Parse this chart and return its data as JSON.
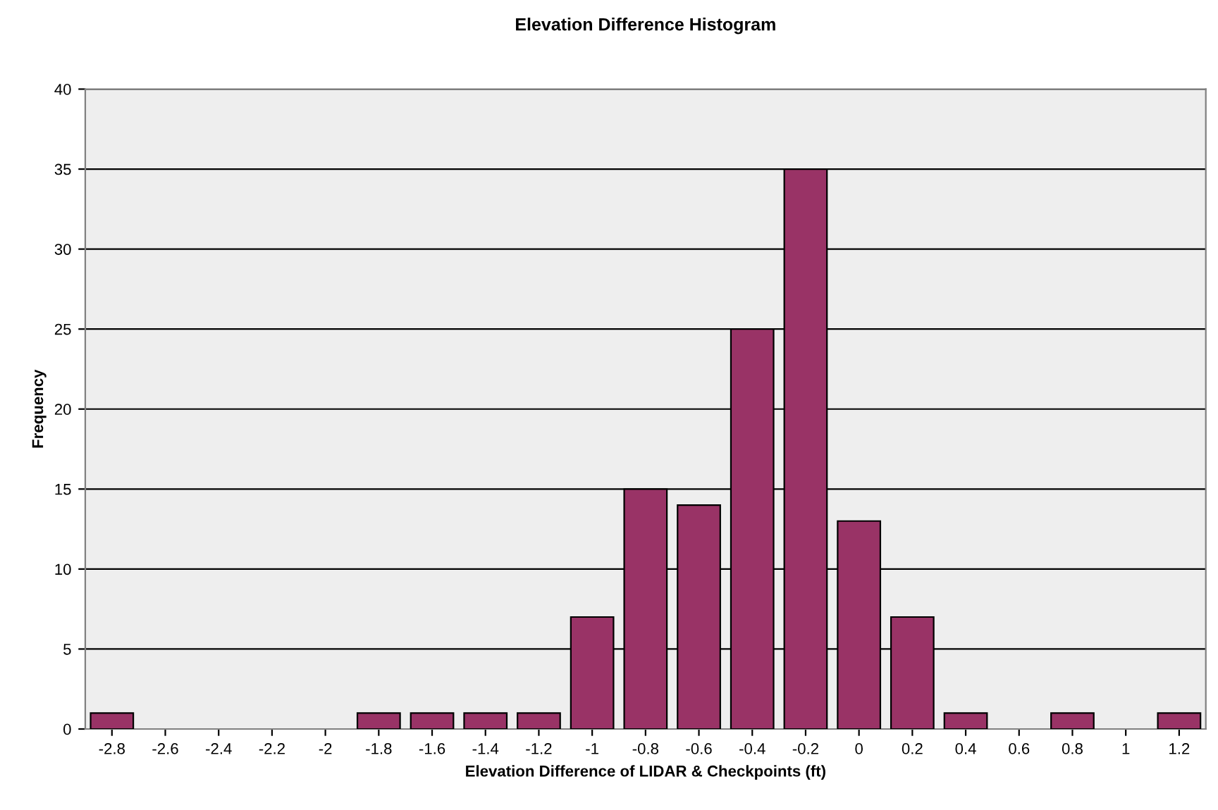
{
  "chart_data": {
    "type": "bar",
    "title": "Elevation Difference Histogram",
    "xlabel": "Elevation Difference of LIDAR & Checkpoints (ft)",
    "ylabel": "Frequency",
    "categories": [
      "-2.8",
      "-2.6",
      "-2.4",
      "-2.2",
      "-2",
      "-1.8",
      "-1.6",
      "-1.4",
      "-1.2",
      "-1",
      "-0.8",
      "-0.6",
      "-0.4",
      "-0.2",
      "0",
      "0.2",
      "0.4",
      "0.6",
      "0.8",
      "1",
      "1.2"
    ],
    "values": [
      1,
      0,
      0,
      0,
      0,
      1,
      1,
      1,
      1,
      7,
      15,
      14,
      25,
      35,
      13,
      7,
      1,
      0,
      1,
      0,
      1
    ],
    "color": "#993366",
    "ylim": [
      0,
      40
    ],
    "yticks": [
      0,
      5,
      10,
      15,
      20,
      25,
      30,
      35,
      40
    ],
    "grid": "y",
    "legend": false
  }
}
